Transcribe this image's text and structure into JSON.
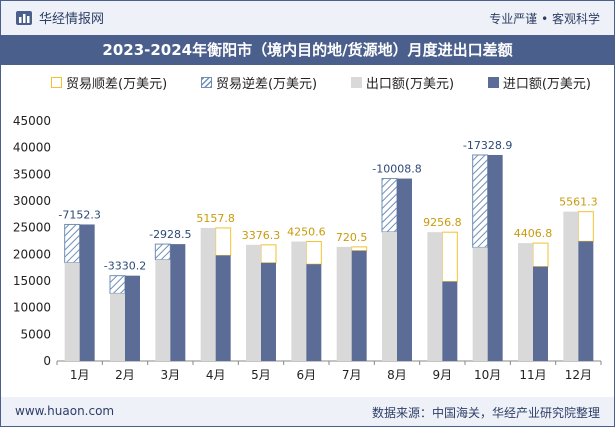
{
  "header": {
    "brand": "华经情报网",
    "tagline": "专业严谨 • 客观科学"
  },
  "footer": {
    "site": "www.huaon.com",
    "source": "数据来源：中国海关，华经产业研究院整理"
  },
  "colors": {
    "surplus": "#f2c230",
    "deficit": "#6f8fb5",
    "export": "#d9d9d9",
    "import": "#5b6d96"
  },
  "chart_data": {
    "type": "bar",
    "title": "2023-2024年衡阳市（境内目的地/货源地）月度进出口差额",
    "categories": [
      "1月",
      "2月",
      "3月",
      "4月",
      "5月",
      "6月",
      "7月",
      "8月",
      "9月",
      "10月",
      "11月",
      "12月"
    ],
    "ylim": [
      0,
      45000
    ],
    "yticks": [
      0,
      5000,
      10000,
      15000,
      20000,
      25000,
      30000,
      35000,
      40000,
      45000
    ],
    "series": [
      {
        "name": "出口额(万美元)",
        "values": [
          18450,
          12670,
          18990,
          24950,
          21780,
          22400,
          21400,
          24200,
          24150,
          21300,
          22100,
          28000
        ]
      },
      {
        "name": "进口额(万美元)",
        "values": [
          25602.3,
          16000.2,
          21918.5,
          19792.2,
          18403.7,
          18149.4,
          20679.5,
          34208.8,
          14893.2,
          38628.9,
          17693.2,
          22438.7
        ]
      }
    ],
    "balance": {
      "surplus_name": "贸易顺差(万美元)",
      "deficit_name": "贸易逆差(万美元)",
      "labels": [
        "-7152.3",
        "-3330.2",
        "-2928.5",
        "5157.8",
        "3376.3",
        "4250.6",
        "720.5",
        "-10008.8",
        "9256.8",
        "-17328.9",
        "4406.8",
        "5561.3"
      ]
    },
    "legend": [
      "贸易顺差(万美元)",
      "贸易逆差(万美元)",
      "出口额(万美元)",
      "进口额(万美元)"
    ],
    "legend_position": "top"
  }
}
